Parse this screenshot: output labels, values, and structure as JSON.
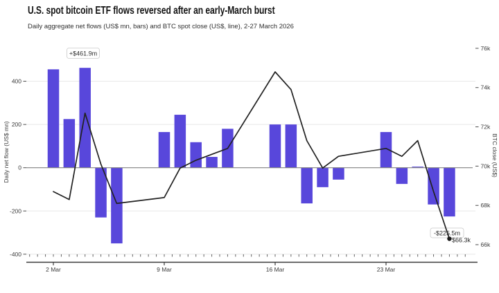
{
  "header": {
    "title": "U.S. spot bitcoin ETF flows reversed after an early-March burst",
    "subtitle": "Daily aggregate net flows (US$ mn, bars) and BTC spot close (US$, line), 2-27 March 2026"
  },
  "chart_data": {
    "type": "bar+line dual axis",
    "x_unit": "date, weekdays of March 2026 (weekend gaps, no points)",
    "categories": [
      "2 Mar",
      "3 Mar",
      "4 Mar",
      "5 Mar",
      "6 Mar",
      "9 Mar",
      "10 Mar",
      "11 Mar",
      "12 Mar",
      "13 Mar",
      "16 Mar",
      "17 Mar",
      "18 Mar",
      "19 Mar",
      "20 Mar",
      "23 Mar",
      "24 Mar",
      "25 Mar",
      "26 Mar",
      "27 Mar"
    ],
    "days_of_march": [
      2,
      3,
      4,
      5,
      6,
      9,
      10,
      11,
      12,
      13,
      16,
      17,
      18,
      19,
      20,
      23,
      24,
      25,
      26,
      27
    ],
    "series": [
      {
        "name": "Daily aggregate net flow",
        "type": "bar",
        "axis": "left",
        "unit": "US$ mn",
        "values": [
          455,
          225,
          461.9,
          -230,
          -350,
          165,
          245,
          118,
          50,
          180,
          200,
          200,
          -165,
          -90,
          -55,
          165,
          -75,
          5,
          -170,
          -225.5
        ]
      },
      {
        "name": "BTC spot close",
        "type": "line",
        "axis": "right",
        "unit": "US$",
        "values": [
          68700,
          68300,
          72700,
          70100,
          68100,
          68400,
          69900,
          70300,
          70600,
          70900,
          74800,
          73900,
          71300,
          69900,
          70500,
          70900,
          70500,
          71300,
          68700,
          66300
        ]
      }
    ],
    "left_axis": {
      "label": "Daily net flow (US$ mn)",
      "tick_values": [
        400,
        200,
        0,
        -200,
        -400
      ],
      "tick_labels": [
        "400",
        "200",
        "0",
        "-200",
        "-400"
      ],
      "range": [
        -435,
        570
      ]
    },
    "right_axis": {
      "label": "BTC close (US$)",
      "tick_values": [
        76000,
        74000,
        72000,
        70000,
        68000,
        66000
      ],
      "tick_labels": [
        "76k",
        "74k",
        "72k",
        "70k",
        "68k",
        "66k"
      ],
      "range": [
        65150,
        76250
      ]
    },
    "x_axis": {
      "major_tick_days": [
        2,
        9,
        16,
        23
      ],
      "major_tick_labels": [
        "2 Mar",
        "9 Mar",
        "16 Mar",
        "23 Mar"
      ]
    },
    "annotations": [
      {
        "id": "peak_flow",
        "target": "4 Mar bar",
        "text": "+$461.9m",
        "boxed": true
      },
      {
        "id": "last_flow",
        "target": "27 Mar bar",
        "text": "-$225.5m",
        "boxed": true
      },
      {
        "id": "last_price",
        "target": "27 Mar line point",
        "text": "$66.3k",
        "boxed": false
      }
    ],
    "grid": "horizontal lines at left-axis ticks only, zero line emphasized",
    "legend": "none",
    "end_dot_on_line": true
  },
  "colors": {
    "bar": "#5847db",
    "line": "#212121",
    "grid": "#e8e8e8",
    "zero_line": "#808080",
    "axis": "#3c3c3c",
    "tick_text": "#3a3a3a",
    "annotation_text": "#2b2b2b",
    "annotation_border": "#c9c9c9",
    "background": "#ffffff"
  }
}
